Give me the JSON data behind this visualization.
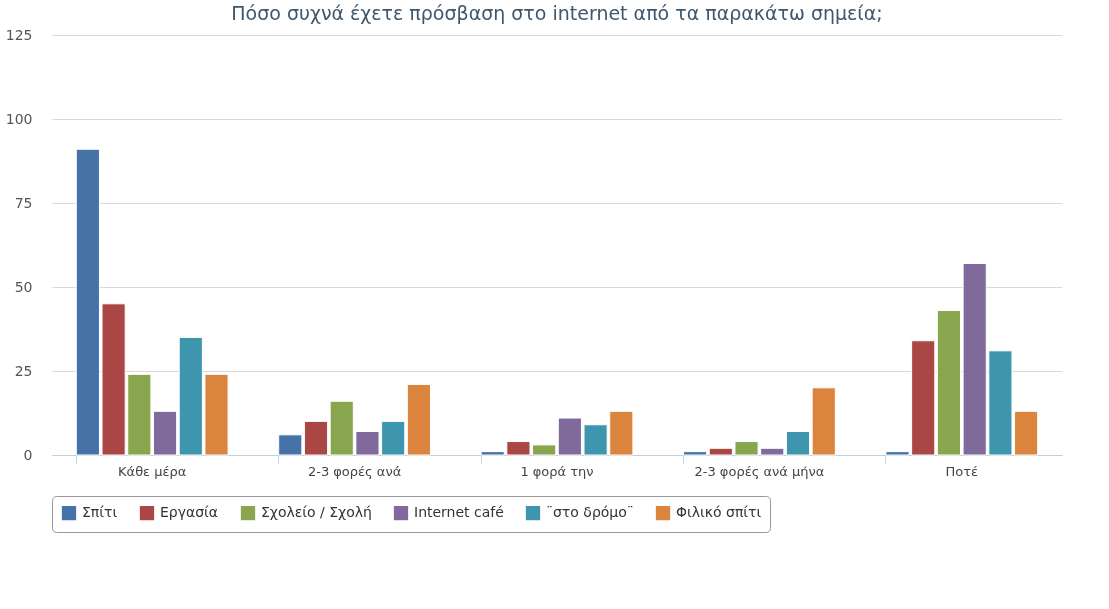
{
  "chart_data": {
    "type": "bar",
    "title": "Πόσο συχνά έχετε πρόσβαση στο internet από τα παρακάτω σημεία;",
    "categories": [
      "Κάθε μέρα",
      "2-3 φορές  ανά",
      "1 φορά την",
      "2-3 φορές ανά μήνα",
      "Ποτέ"
    ],
    "series": [
      {
        "name": "Σπίτι",
        "color": "#4572a7",
        "values": [
          91,
          6,
          1,
          1,
          1
        ]
      },
      {
        "name": "Εργασία",
        "color": "#aa4643",
        "values": [
          45,
          10,
          4,
          2,
          34
        ]
      },
      {
        "name": "Σχολείο / Σχολή",
        "color": "#89a54e",
        "values": [
          24,
          16,
          3,
          4,
          43
        ]
      },
      {
        "name": "Internet café",
        "color": "#80699b",
        "values": [
          13,
          7,
          11,
          2,
          57
        ]
      },
      {
        "name": "¨στο δρόμο¨",
        "color": "#3d96ae",
        "values": [
          35,
          10,
          9,
          7,
          31
        ]
      },
      {
        "name": "Φιλικό σπίτι",
        "color": "#db843d",
        "values": [
          24,
          21,
          13,
          20,
          13
        ]
      }
    ],
    "ylim": [
      0,
      125
    ],
    "yticks": [
      0,
      25,
      50,
      75,
      100,
      125
    ],
    "grid": "y",
    "legend": "bottom"
  }
}
